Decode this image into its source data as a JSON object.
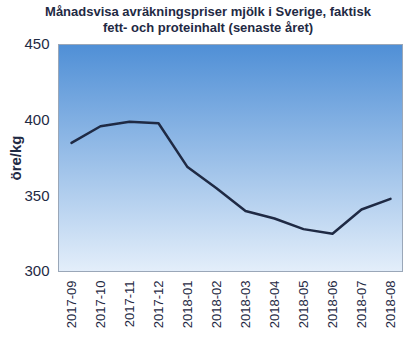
{
  "chart_data": {
    "type": "line",
    "title": "Månadsvisa avräkningspriser mjölk i Sverige, faktisk fett- och proteinhalt (senaste året)",
    "y_label": "öre/kg",
    "categories": [
      "2017-09",
      "2017-10",
      "2017-11",
      "2017-12",
      "2018-01",
      "2018-02",
      "2018-03",
      "2018-04",
      "2018-05",
      "2018-06",
      "2018-07",
      "2018-08"
    ],
    "values": [
      385,
      396,
      399,
      398,
      369,
      355,
      340,
      335,
      328,
      325,
      341,
      348
    ],
    "color": "#1f2a44",
    "ylim": [
      300,
      450
    ],
    "yticks": [
      300,
      350,
      400,
      450
    ],
    "grid": false
  }
}
